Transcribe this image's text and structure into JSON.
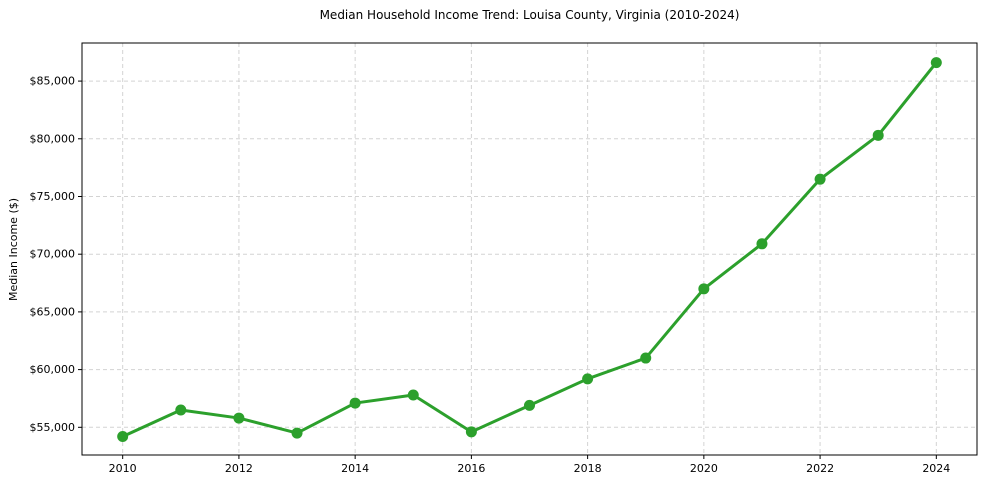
{
  "chart_data": {
    "type": "line",
    "title": "Median Household Income Trend: Louisa County, Virginia (2010-2024)",
    "xlabel": "",
    "ylabel": "Median Income ($)",
    "series_name": "Median Household Income",
    "x": [
      2010,
      2011,
      2012,
      2013,
      2014,
      2015,
      2016,
      2017,
      2018,
      2019,
      2020,
      2021,
      2022,
      2023,
      2024
    ],
    "values": [
      54200,
      56500,
      55800,
      54500,
      57100,
      57800,
      54600,
      56900,
      59200,
      61000,
      67000,
      70900,
      76500,
      80300,
      86600
    ],
    "line_color": "#2ca02c",
    "marker": "circle",
    "marker_radius": 5.5,
    "grid": true,
    "legend_position": "none",
    "xlim": [
      2009.3,
      2024.7
    ],
    "ylim": [
      52600,
      88300
    ],
    "x_ticks": [
      2010,
      2012,
      2014,
      2016,
      2018,
      2020,
      2022,
      2024
    ],
    "y_ticks": [
      55000,
      60000,
      65000,
      70000,
      75000,
      80000,
      85000
    ],
    "y_tick_labels": [
      "$55,000",
      "$60,000",
      "$65,000",
      "$70,000",
      "$75,000",
      "$80,000",
      "$85,000"
    ]
  }
}
